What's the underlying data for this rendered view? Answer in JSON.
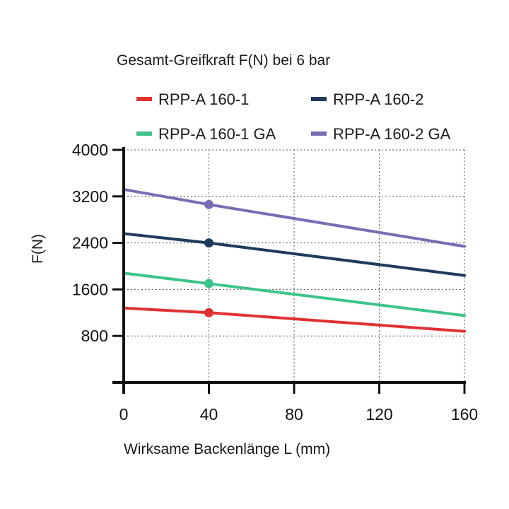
{
  "chart_data": {
    "type": "line",
    "title": "Gesamt-Greifkraft F(N) bei 6 bar",
    "xlabel": "Wirksame Backenlänge L (mm)",
    "ylabel": "F(N)",
    "xlim": [
      0,
      160
    ],
    "ylim": [
      0,
      4000
    ],
    "xticks": [
      "0",
      "40",
      "80",
      "120",
      "160"
    ],
    "yticks": [
      "800",
      "1600",
      "2400",
      "3200",
      "4000"
    ],
    "grid": true,
    "legend_position": "top",
    "series": [
      {
        "name": "RPP-A 160-1",
        "color": "#e03232",
        "x": [
          0,
          40,
          160
        ],
        "y": [
          1280,
          1200,
          880
        ]
      },
      {
        "name": "RPP-A 160-2",
        "color": "#1f3b5c",
        "x": [
          0,
          40,
          160
        ],
        "y": [
          2560,
          2400,
          1840
        ]
      },
      {
        "name": "RPP-A 160-1 GA",
        "color": "#3cc48a",
        "x": [
          0,
          40,
          160
        ],
        "y": [
          1880,
          1700,
          1150
        ]
      },
      {
        "name": "RPP-A 160-2 GA",
        "color": "#7b6bb5",
        "x": [
          0,
          40,
          160
        ],
        "y": [
          3320,
          3060,
          2340
        ]
      }
    ],
    "marker_x": 40
  }
}
